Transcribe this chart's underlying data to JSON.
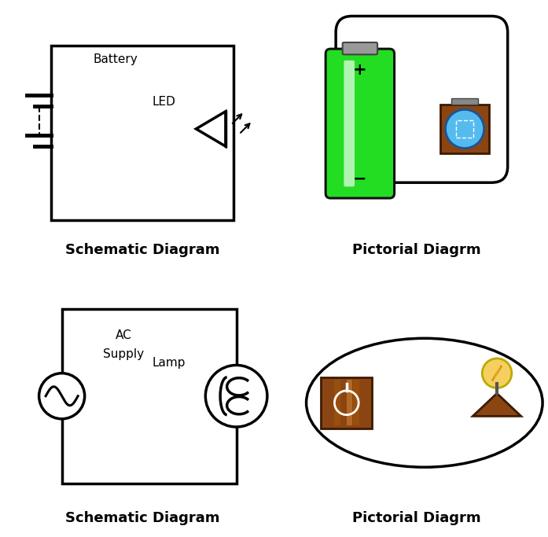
{
  "bg_color": "#ffffff",
  "line_color": "#000000",
  "line_width": 2.0,
  "title_fontsize": 13,
  "label_fontsize": 11,
  "captions": [
    "Schematic Diagram",
    "Pictorial Diagrm",
    "Schematic Diagram",
    "Pictorial Diagrm"
  ],
  "battery_green": "#22dd22",
  "battery_dark": "#333333",
  "battery_gray": "#888888",
  "wood_brown": "#8B4513",
  "light_blue": "#55bbee",
  "lamp_yellow": "#f5d060"
}
